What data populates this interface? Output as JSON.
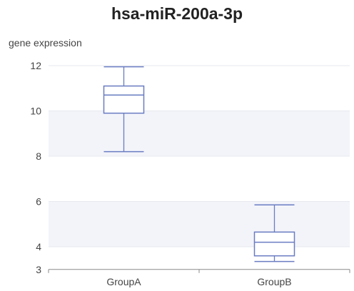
{
  "chart_data": {
    "type": "box",
    "title": "hsa-miR-200a-3p",
    "ylabel": "gene expression",
    "xlabel": "",
    "ylim": [
      3,
      12.2
    ],
    "yticks": [
      3,
      4,
      6,
      8,
      10,
      12
    ],
    "grid": true,
    "categories": [
      "GroupA",
      "GroupB"
    ],
    "boxes": [
      {
        "category": "GroupA",
        "min": 8.2,
        "q1": 9.9,
        "median": 10.7,
        "q3": 11.1,
        "max": 11.95
      },
      {
        "category": "GroupB",
        "min": 3.35,
        "q1": 3.6,
        "median": 4.2,
        "q3": 4.65,
        "max": 5.85
      }
    ],
    "colors": {
      "box_stroke": "#6a7cc2",
      "band": "#f3f4fa",
      "gridline": "#e6e8ef",
      "axis": "#8a8a8a"
    }
  }
}
